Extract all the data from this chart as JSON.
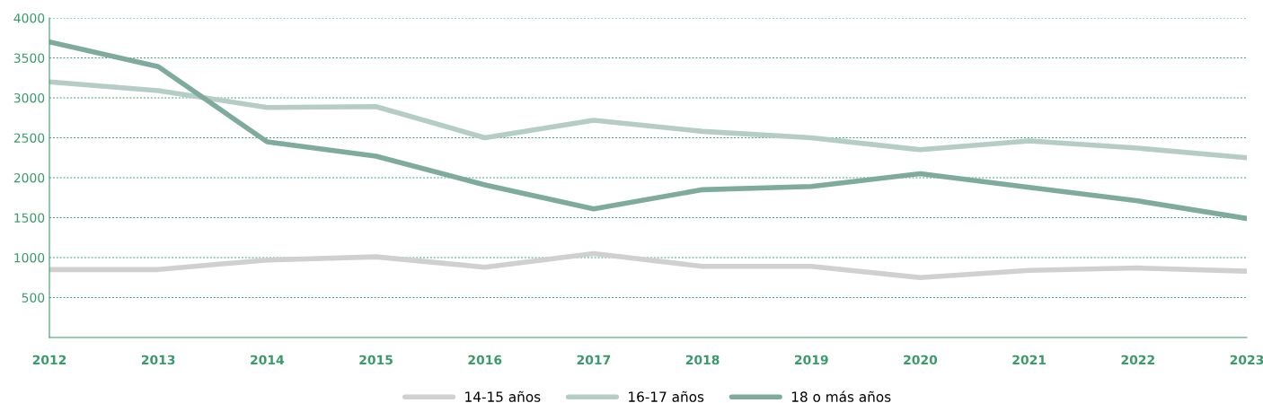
{
  "chart_data": {
    "type": "line",
    "categories": [
      "2012",
      "2013",
      "2014",
      "2015",
      "2016",
      "2017",
      "2018",
      "2019",
      "2020",
      "2021",
      "2022",
      "2023"
    ],
    "series": [
      {
        "name": "14-15 años",
        "color": "#d0d0d0",
        "values": [
          850,
          850,
          970,
          1010,
          880,
          1050,
          890,
          890,
          750,
          840,
          870,
          830
        ]
      },
      {
        "name": "16-17 años",
        "color": "#b5cdc6",
        "values": [
          3200,
          3090,
          2880,
          2890,
          2500,
          2720,
          2580,
          2500,
          2350,
          2460,
          2370,
          2250
        ]
      },
      {
        "name": "18 o más años",
        "color": "#7faa9e",
        "values": [
          3700,
          3390,
          2450,
          2270,
          1910,
          1610,
          1850,
          1890,
          2050,
          1880,
          1710,
          1490
        ]
      }
    ],
    "ylim": [
      0,
      4000
    ],
    "yticks": [
      500,
      1000,
      1500,
      2000,
      2500,
      3000,
      3500,
      4000
    ],
    "grid": "y",
    "legend": "bottom",
    "line_style": "solid",
    "marker": "none"
  }
}
